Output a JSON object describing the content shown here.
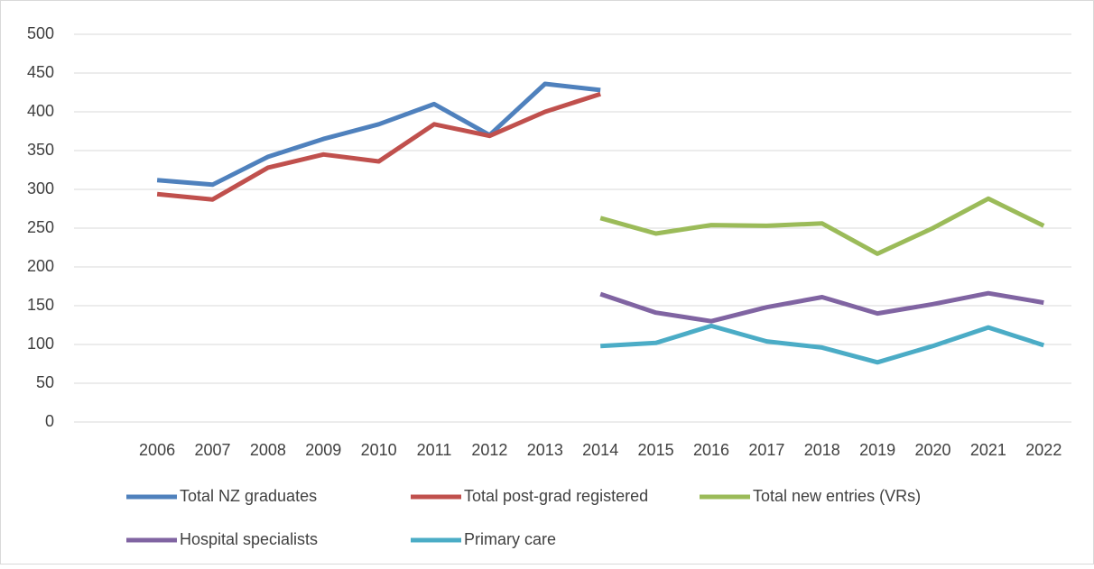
{
  "chart_data": {
    "type": "line",
    "categories": [
      null,
      "2006",
      "2007",
      "2008",
      "2009",
      "2010",
      "2011",
      "2012",
      "2013",
      "2014",
      "2015",
      "2016",
      "2017",
      "2018",
      "2019",
      "2020",
      "2021",
      "2022"
    ],
    "series": [
      {
        "name": "Total NZ graduates",
        "color": "#4f81bd",
        "values": [
          null,
          312,
          306,
          342,
          365,
          384,
          410,
          370,
          436,
          428,
          null,
          null,
          null,
          null,
          null,
          null,
          null,
          null
        ]
      },
      {
        "name": "Total post-grad registered",
        "color": "#c0504d",
        "values": [
          null,
          294,
          287,
          328,
          345,
          336,
          384,
          369,
          400,
          423,
          null,
          null,
          null,
          null,
          null,
          null,
          null,
          null
        ]
      },
      {
        "name": "Total new entries (VRs)",
        "color": "#9bbb59",
        "values": [
          null,
          null,
          null,
          null,
          null,
          null,
          null,
          null,
          null,
          263,
          243,
          254,
          253,
          256,
          217,
          250,
          288,
          253
        ]
      },
      {
        "name": "Hospital specialists",
        "color": "#8064a2",
        "values": [
          null,
          null,
          null,
          null,
          null,
          null,
          null,
          null,
          null,
          165,
          141,
          130,
          148,
          161,
          140,
          152,
          166,
          154
        ]
      },
      {
        "name": "Primary care",
        "color": "#4bacc6",
        "values": [
          null,
          null,
          null,
          null,
          null,
          null,
          null,
          null,
          null,
          98,
          102,
          124,
          104,
          96,
          77,
          98,
          122,
          99
        ]
      }
    ],
    "ylim": [
      0,
      500
    ],
    "yticks": [
      0,
      50,
      100,
      150,
      200,
      250,
      300,
      350,
      400,
      450,
      500
    ],
    "grid": true,
    "legend": "bottom"
  }
}
